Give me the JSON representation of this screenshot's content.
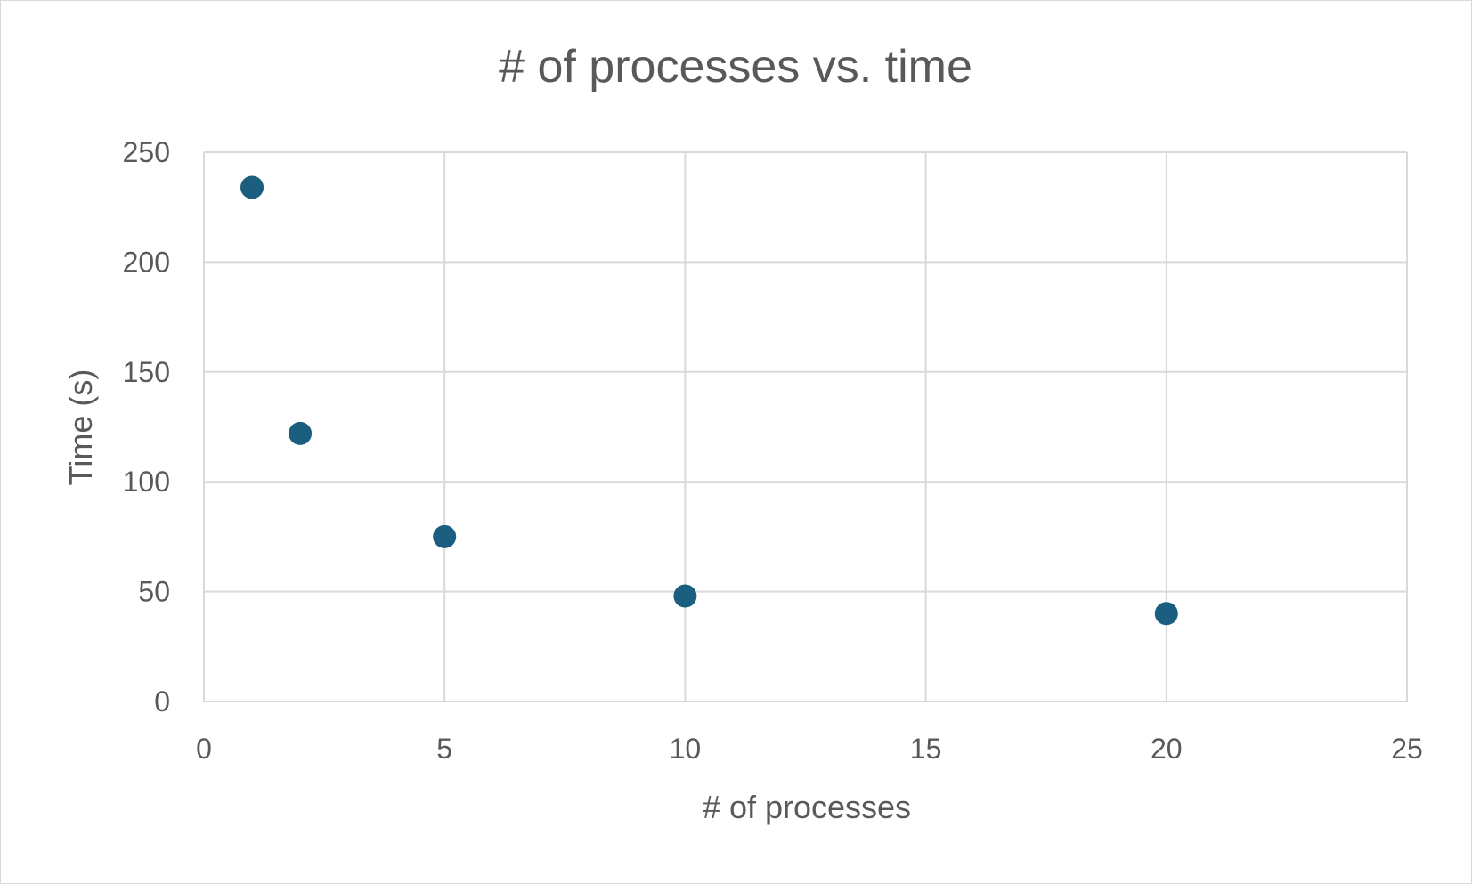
{
  "chart_data": {
    "type": "scatter",
    "title": "# of processes vs. time",
    "xlabel": "# of processes",
    "ylabel": "Time (s)",
    "xlim": [
      0,
      25
    ],
    "ylim": [
      0,
      250
    ],
    "xticks": [
      0,
      5,
      10,
      15,
      20,
      25
    ],
    "yticks": [
      0,
      50,
      100,
      150,
      200,
      250
    ],
    "grid": true,
    "legend": "none",
    "series": [
      {
        "color": "#1b5e80",
        "points": [
          {
            "x": 1,
            "y": 234
          },
          {
            "x": 2,
            "y": 122
          },
          {
            "x": 5,
            "y": 75
          },
          {
            "x": 10,
            "y": 48
          },
          {
            "x": 20,
            "y": 40
          }
        ]
      }
    ]
  }
}
